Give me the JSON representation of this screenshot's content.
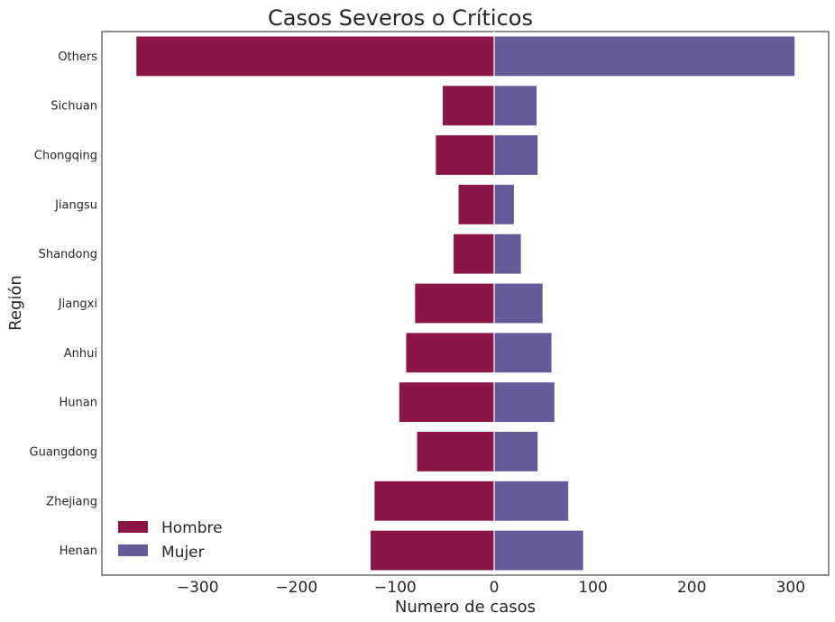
{
  "chart_data": {
    "type": "bar",
    "orientation": "horizontal",
    "title": "Casos Severos o Críticos",
    "xlabel": "Numero de casos",
    "ylabel": "Región",
    "categories": [
      "Others",
      "Sichuan",
      "Chongqing",
      "Jiangsu",
      "Shandong",
      "Jiangxi",
      "Anhui",
      "Hunan",
      "Guangdong",
      "Zhejiang",
      "Henan"
    ],
    "series": [
      {
        "name": "Hombre",
        "color": "#8b1545",
        "values": [
          -362,
          -52,
          -59,
          -36,
          -41,
          -80,
          -89,
          -96,
          -78,
          -121,
          -125
        ]
      },
      {
        "name": "Mujer",
        "color": "#655a9a",
        "values": [
          304,
          43,
          44,
          20,
          27,
          49,
          58,
          61,
          44,
          75,
          90
        ]
      }
    ],
    "xticks": [
      -300,
      -200,
      -100,
      0,
      100,
      200,
      300
    ],
    "xtick_labels": [
      "−300",
      "−200",
      "−100",
      "0",
      "100",
      "200",
      "300"
    ],
    "xlim": [
      -400,
      338
    ],
    "grid": false,
    "legend_position": "lower-left"
  }
}
